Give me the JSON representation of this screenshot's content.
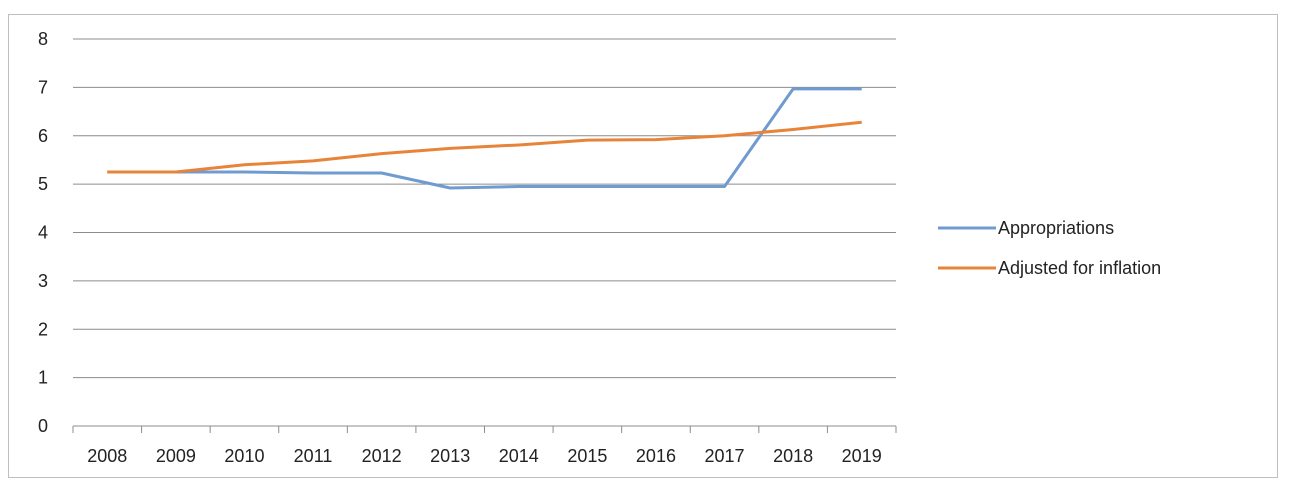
{
  "chart_data": {
    "type": "line",
    "x": [
      "2008",
      "2009",
      "2010",
      "2011",
      "2012",
      "2013",
      "2014",
      "2015",
      "2016",
      "2017",
      "2018",
      "2019"
    ],
    "series": [
      {
        "name": "Appropriations",
        "color": "#6f9bd1",
        "values": [
          5.25,
          5.25,
          5.25,
          5.23,
          5.23,
          4.92,
          4.95,
          4.95,
          4.95,
          4.95,
          6.97,
          6.97
        ]
      },
      {
        "name": "Adjusted for inflation",
        "color": "#e8833a",
        "values": [
          5.25,
          5.25,
          5.4,
          5.48,
          5.63,
          5.74,
          5.81,
          5.91,
          5.92,
          6.0,
          6.13,
          6.28
        ]
      }
    ],
    "ylim": [
      0,
      8
    ],
    "yticks": [
      "0",
      "1",
      "2",
      "3",
      "4",
      "5",
      "6",
      "7",
      "8"
    ],
    "grid": true,
    "legend_position": "right"
  }
}
